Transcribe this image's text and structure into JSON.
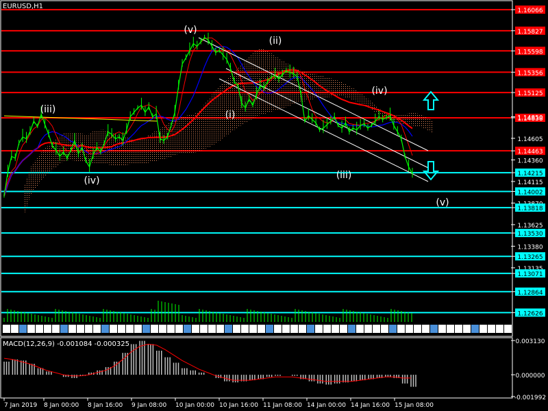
{
  "window_title": "EURUSD,H1",
  "colors": {
    "background": "#000000",
    "axis": "#ffffff",
    "candles": "#00ff00",
    "resistance": "#ff0000",
    "support": "#00ffff",
    "ma_red": "#ff0000",
    "ma_blue": "#0000ff",
    "ma_yellow": "#ffff00",
    "cloud": "#ff9966",
    "macd_hist": "#c0c0c0",
    "macd_signal": "#ff0000",
    "arrow": "#00ffff"
  },
  "chart_data": [
    {
      "type": "line",
      "title": "EURUSD,H1",
      "y_axis_labels": [
        "1.16066",
        "1.15827",
        "1.15598",
        "1.15356",
        "1.15125",
        "1.14838",
        "1.14850",
        "1.14605",
        "1.14463",
        "1.14360",
        "1.14215",
        "1.14115",
        "1.14002",
        "1.13870",
        "1.13818",
        "1.13625",
        "1.13530",
        "1.13380",
        "1.13265",
        "1.13135",
        "1.13071",
        "1.12864",
        "1.12626"
      ],
      "resistance_levels": [
        1.16066,
        1.15827,
        1.15598,
        1.15356,
        1.15125,
        1.14838,
        1.14463
      ],
      "support_levels": [
        1.14215,
        1.14002,
        1.13818,
        1.1353,
        1.13265,
        1.13071,
        1.12864,
        1.12626
      ],
      "highlighted_levels": [
        "1.16066",
        "1.15827",
        "1.15598",
        "1.15356",
        "1.15125",
        "1.14838",
        "1.14463",
        "1.14215",
        "1.14002",
        "1.13818",
        "1.13530",
        "1.13265",
        "1.13071",
        "1.12864",
        "1.12626"
      ],
      "ylim": [
        1.1252,
        1.1616
      ],
      "x_axis_labels": [
        "7 Jan 2019",
        "8 Jan 00:00",
        "8 Jan 16:00",
        "9 Jan 08:00",
        "10 Jan 00:00",
        "10 Jan 16:00",
        "11 Jan 08:00",
        "14 Jan 00:00",
        "14 Jan 16:00",
        "15 Jan 08:00"
      ],
      "wave_labels": [
        "(v)",
        "(ii)",
        "(iii)",
        "(iv)",
        "(i)",
        "(iv)",
        "(iii)",
        "(v)"
      ],
      "price_series": [
        1.1395,
        1.1422,
        1.144,
        1.1438,
        1.1455,
        1.1462,
        1.146,
        1.1468,
        1.148,
        1.1474,
        1.1488,
        1.1476,
        1.1465,
        1.1452,
        1.1447,
        1.144,
        1.1445,
        1.1438,
        1.1447,
        1.1458,
        1.1443,
        1.145,
        1.1435,
        1.1428,
        1.1442,
        1.145,
        1.1445,
        1.1455,
        1.1468,
        1.1465,
        1.146,
        1.1462,
        1.1458,
        1.147,
        1.1485,
        1.149,
        1.1495,
        1.1498,
        1.149,
        1.1496,
        1.1485,
        1.1488,
        1.146,
        1.1458,
        1.1462,
        1.1475,
        1.149,
        1.152,
        1.1545,
        1.1552,
        1.156,
        1.1568,
        1.1565,
        1.157,
        1.1575,
        1.1572,
        1.1565,
        1.1558,
        1.156,
        1.1555,
        1.155,
        1.154,
        1.1525,
        1.152,
        1.15,
        1.1495,
        1.1505,
        1.1498,
        1.151,
        1.152,
        1.1518,
        1.1525,
        1.153,
        1.1532,
        1.1528,
        1.1533,
        1.1537,
        1.1535,
        1.1534,
        1.153,
        1.151,
        1.148,
        1.1486,
        1.1482,
        1.1478,
        1.147,
        1.1472,
        1.1476,
        1.148,
        1.1485,
        1.1475,
        1.1472,
        1.1478,
        1.1468,
        1.1472,
        1.147,
        1.1475,
        1.1477,
        1.1472,
        1.1475,
        1.148,
        1.1485,
        1.1482,
        1.1484,
        1.1486,
        1.1475,
        1.1468,
        1.146,
        1.144,
        1.1428,
        1.142
      ]
    },
    {
      "type": "bar",
      "title": "MACD(12,26,9) -0.001084 -0.000325",
      "y_axis_labels": [
        "0.003130",
        "0.000000",
        "-0.001992"
      ],
      "ylim": [
        -0.002,
        0.0032
      ],
      "histogram": [
        0.0012,
        0.0014,
        0.0013,
        0.001,
        0.0006,
        0.0003,
        0.0,
        -0.0002,
        -0.0003,
        -0.0001,
        0.0002,
        0.0004,
        0.0007,
        0.0012,
        0.002,
        0.0028,
        0.0031,
        0.0028,
        0.0022,
        0.0016,
        0.0011,
        0.0006,
        0.0004,
        0.0002,
        0.0,
        -0.0003,
        -0.0006,
        -0.0007,
        -0.0006,
        -0.0005,
        -0.0004,
        -0.0002,
        -0.0001,
        0.0,
        -0.0001,
        -0.0004,
        -0.0006,
        -0.0008,
        -0.0009,
        -0.0008,
        -0.0007,
        -0.0006,
        -0.0005,
        -0.0004,
        -0.0003,
        -0.0002,
        -0.0003,
        -0.0008,
        -0.0011
      ],
      "signal": [
        0.0015,
        0.0014,
        0.0012,
        0.001,
        0.0007,
        0.0004,
        0.0002,
        0.0,
        -0.0001,
        -0.0001,
        0.0,
        0.0002,
        0.0004,
        0.0008,
        0.0014,
        0.0021,
        0.0026,
        0.0028,
        0.0027,
        0.0023,
        0.0018,
        0.0013,
        0.0009,
        0.0005,
        0.0002,
        -0.0001,
        -0.0003,
        -0.0005,
        -0.0005,
        -0.0005,
        -0.0004,
        -0.0003,
        -0.0002,
        -0.0002,
        -0.0002,
        -0.0003,
        -0.0004,
        -0.0005,
        -0.0006,
        -0.0006,
        -0.0006,
        -0.0006,
        -0.0005,
        -0.0004,
        -0.0003,
        -0.0002,
        -0.0002,
        -0.0003,
        -0.0003
      ]
    }
  ]
}
